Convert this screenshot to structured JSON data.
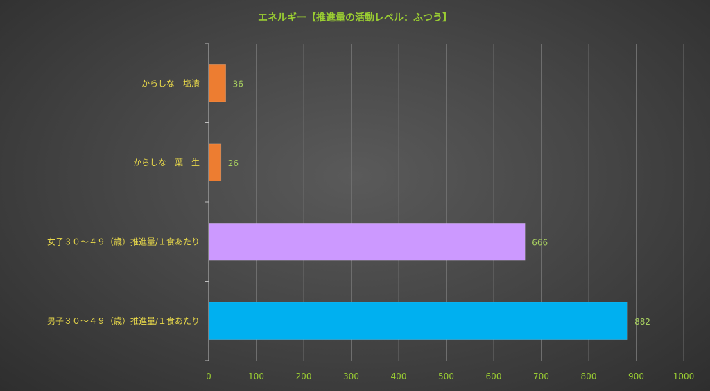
{
  "chart_data": {
    "type": "bar",
    "orientation": "horizontal",
    "title": "エネルギー【推進量の活動レベル：ふつう】",
    "categories": [
      "からしな　塩漬",
      "からしな　葉　生",
      "女子３０～４９（歳）推進量/１食あたり",
      "男子３０～４９（歳）推進量/１食あたり"
    ],
    "values": [
      36,
      26,
      666,
      882
    ],
    "colors": [
      "#ed7d31",
      "#ed7d31",
      "#cc99ff",
      "#00b0f0"
    ],
    "xlim": [
      0,
      1000
    ],
    "x_ticks": [
      0,
      100,
      200,
      300,
      400,
      500,
      600,
      700,
      800,
      900,
      1000
    ],
    "grid": true,
    "legend": "none"
  }
}
